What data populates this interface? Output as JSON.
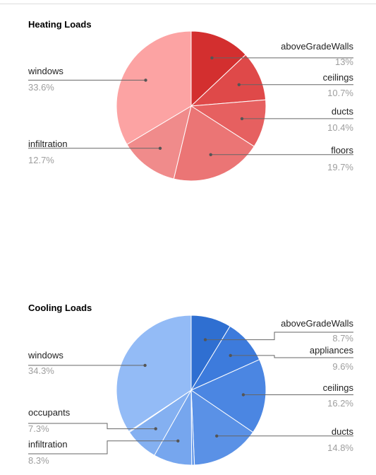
{
  "chart_data": [
    {
      "type": "pie",
      "title": "Heating Loads",
      "slices": [
        {
          "label": "aboveGradeWalls",
          "value": 13,
          "display": "13%",
          "color": "#d32f2f"
        },
        {
          "label": "ceilings",
          "value": 10.7,
          "display": "10.7%",
          "color": "#df4949"
        },
        {
          "label": "ducts",
          "value": 10.4,
          "display": "10.4%",
          "color": "#e66060"
        },
        {
          "label": "floors",
          "value": 19.7,
          "display": "19.7%",
          "color": "#eb7575"
        },
        {
          "label": "infiltration",
          "value": 12.7,
          "display": "12.7%",
          "color": "#f08b8b"
        },
        {
          "label": "windows",
          "value": 33.6,
          "display": "33.6%",
          "color": "#fca3a3"
        }
      ]
    },
    {
      "type": "pie",
      "title": "Cooling Loads",
      "slices": [
        {
          "label": "aboveGradeWalls",
          "value": 8.7,
          "display": "8.7%",
          "color": "#2f6fd1"
        },
        {
          "label": "appliances",
          "value": 9.6,
          "display": "9.6%",
          "color": "#3d7bdc"
        },
        {
          "label": "ceilings",
          "value": 16.2,
          "display": "16.2%",
          "color": "#4b86e2"
        },
        {
          "label": "ducts",
          "value": 14.8,
          "display": "14.8%",
          "color": "#5a91e6"
        },
        {
          "label": "",
          "value": 0.6,
          "display": "",
          "color": "#6a9cea"
        },
        {
          "label": "infiltration",
          "value": 8.3,
          "display": "8.3%",
          "color": "#76a6ee"
        },
        {
          "label": "occupants",
          "value": 7.3,
          "display": "7.3%",
          "color": "#84b0f1"
        },
        {
          "label": "",
          "value": 0.2,
          "display": "",
          "color": "#8ab4f3"
        },
        {
          "label": "windows",
          "value": 34.3,
          "display": "34.3%",
          "color": "#93bbf6"
        }
      ]
    }
  ]
}
